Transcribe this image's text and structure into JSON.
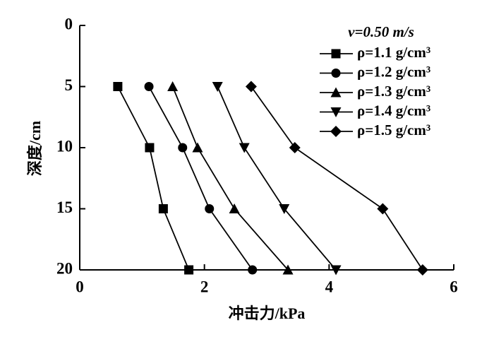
{
  "chart_data": {
    "type": "line",
    "x_label": "冲击力/kPa",
    "y_label": "深度/cm",
    "legend_title": "v=0.50 m/s",
    "y": [
      5,
      10,
      15,
      20
    ],
    "series": [
      {
        "name": "ρ=1.1 g/cm³",
        "color": "#000000",
        "marker": "square",
        "x": [
          0.61,
          1.12,
          1.34,
          1.75
        ]
      },
      {
        "name": "ρ=1.2 g/cm³",
        "color": "#000000",
        "marker": "circle",
        "x": [
          1.11,
          1.65,
          2.08,
          2.77
        ]
      },
      {
        "name": "ρ=1.3 g/cm³",
        "color": "#000000",
        "marker": "triangle-up",
        "x": [
          1.49,
          1.89,
          2.48,
          3.34
        ]
      },
      {
        "name": "ρ=1.4 g/cm³",
        "color": "#000000",
        "marker": "triangle-down",
        "x": [
          2.21,
          2.64,
          3.28,
          4.11
        ]
      },
      {
        "name": "ρ=1.5 g/cm³",
        "color": "#000000",
        "marker": "diamond",
        "x": [
          2.75,
          3.45,
          4.86,
          5.5
        ]
      }
    ],
    "xlim": [
      0,
      6
    ],
    "xticks": [
      0,
      2,
      4,
      6
    ],
    "ylim": [
      0,
      20
    ],
    "yticks": [
      0,
      5,
      10,
      15,
      20
    ],
    "y_inverted": true,
    "legend": "upper right"
  }
}
